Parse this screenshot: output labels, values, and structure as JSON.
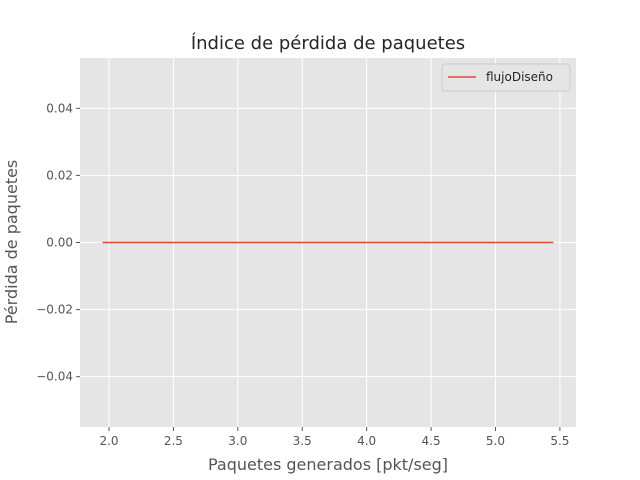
{
  "chart_data": {
    "type": "line",
    "title": "Índice de pérdida de paquetes",
    "xlabel": "Paquetes generados [pkt/seg]",
    "ylabel": "Pérdida de paquetes",
    "xlim": [
      1.775,
      5.625
    ],
    "ylim": [
      -0.055,
      0.055
    ],
    "xticks": [
      2.0,
      2.5,
      3.0,
      3.5,
      4.0,
      4.5,
      5.0,
      5.5
    ],
    "xtick_labels": [
      "2.0",
      "2.5",
      "3.0",
      "3.5",
      "4.0",
      "4.5",
      "5.0",
      "5.5"
    ],
    "yticks": [
      -0.04,
      -0.02,
      0.0,
      0.02,
      0.04
    ],
    "ytick_labels": [
      "−0.04",
      "−0.02",
      "0.00",
      "0.02",
      "0.04"
    ],
    "grid": true,
    "legend_position": "top-right",
    "series": [
      {
        "name": "flujoDiseño",
        "color": "#e24a33",
        "x": [
          1.95,
          5.45
        ],
        "y": [
          0.0,
          0.0
        ]
      }
    ]
  }
}
